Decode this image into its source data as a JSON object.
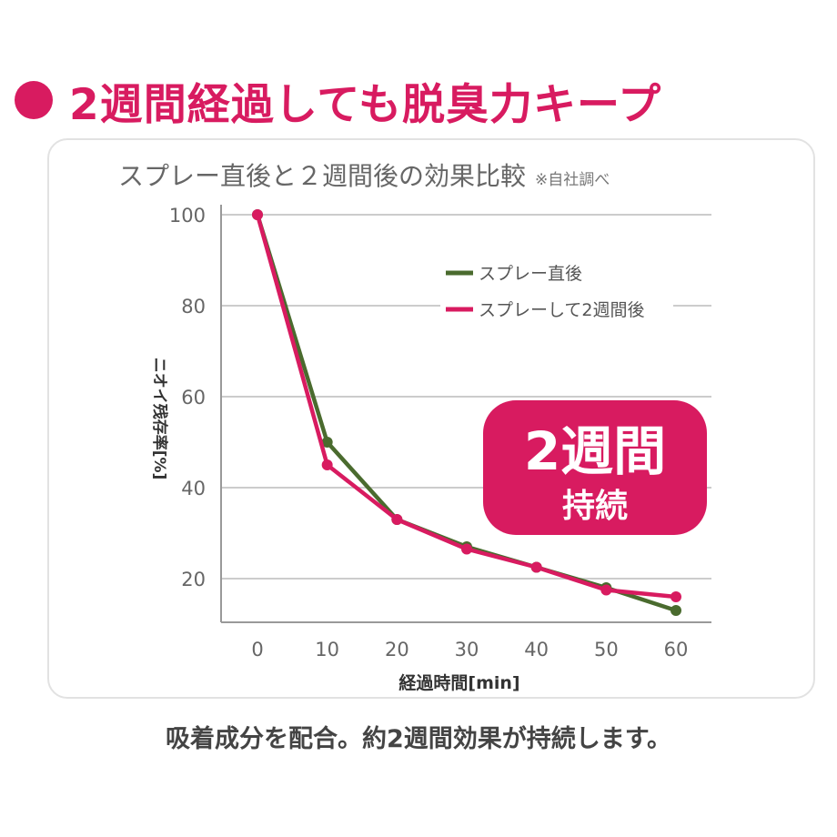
{
  "heading": "2週間経過しても脱臭力キープ",
  "chart_title": "スプレー直後と２週間後の効果比較",
  "chart_note": "※自社調べ",
  "badge": {
    "main": "2週間",
    "sub": "持続"
  },
  "caption": "吸着成分を配合。約2週間効果が持続します。",
  "colors": {
    "accent": "#d81b60",
    "green_series": "#4a6b2e",
    "pink_series": "#d81b60",
    "grid": "#cccccc"
  },
  "chart_data": {
    "type": "line",
    "x": [
      0,
      10,
      20,
      30,
      40,
      50,
      60
    ],
    "xlabel": "経過時間[min]",
    "ylabel": "ニオイ残存率[%]",
    "x_ticks": [
      "0",
      "10",
      "20",
      "30",
      "40",
      "50",
      "60"
    ],
    "y_ticks": [
      "20",
      "40",
      "60",
      "80",
      "100"
    ],
    "ylim": [
      12,
      100
    ],
    "xlim": [
      0,
      60
    ],
    "grid": true,
    "legend_position": "top-right",
    "series": [
      {
        "name": "スプレー直後",
        "color": "#4a6b2e",
        "values": [
          100,
          50,
          33,
          27,
          22.5,
          18,
          13
        ]
      },
      {
        "name": "スプレーして2週間後",
        "color": "#d81b60",
        "values": [
          100,
          45,
          33,
          26.5,
          22.5,
          17.5,
          16
        ]
      }
    ]
  }
}
